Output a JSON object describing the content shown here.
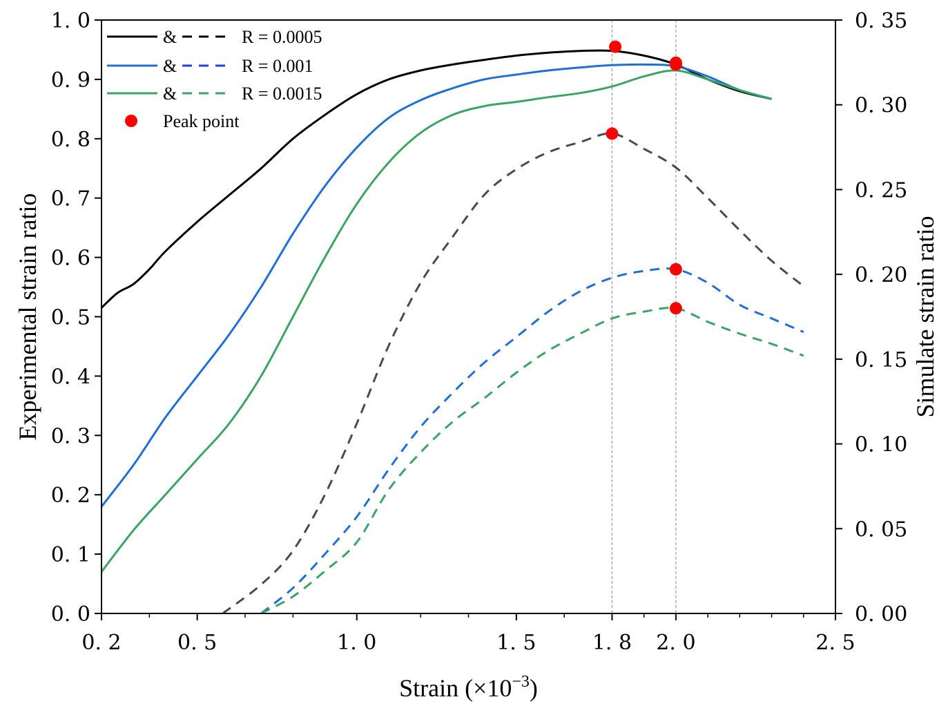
{
  "chart_data": {
    "type": "line",
    "title": "",
    "xlabel": "Strain (×10",
    "xlabel_exponent": "−3",
    "xlabel_close": ")",
    "ylabel_left": "Experimental strain ratio",
    "ylabel_right": "Simulate strain ratio",
    "xlim": [
      0.2,
      2.5
    ],
    "ylim_left": [
      0.0,
      1.0
    ],
    "ylim_right": [
      0.0,
      0.35
    ],
    "x_ticks": [
      0.2,
      0.5,
      1.0,
      1.5,
      1.8,
      2.0,
      2.5
    ],
    "x_tick_labels": [
      "0. 2",
      "0. 5",
      "1. 0",
      "1. 5",
      "1. 8",
      "2. 0",
      "2. 5"
    ],
    "x_minor_ticks": [
      0.35,
      0.65,
      0.8,
      1.2,
      1.35,
      1.65,
      1.9,
      2.1,
      2.2,
      2.3,
      2.4
    ],
    "y_left_ticks": [
      0.0,
      0.1,
      0.2,
      0.3,
      0.4,
      0.5,
      0.6,
      0.7,
      0.8,
      0.9,
      1.0
    ],
    "y_left_tick_labels": [
      "0. 0",
      "0. 1",
      "0. 2",
      "0. 3",
      "0. 4",
      "0. 5",
      "0. 6",
      "0. 7",
      "0. 8",
      "0. 9",
      "1. 0"
    ],
    "y_right_ticks": [
      0.0,
      0.05,
      0.1,
      0.15,
      0.2,
      0.25,
      0.3,
      0.35
    ],
    "y_right_tick_labels": [
      "0. 00",
      "0. 05",
      "0. 10",
      "0. 15",
      "0. 20",
      "0. 25",
      "0. 30",
      "0. 35"
    ],
    "vlines": [
      1.8,
      2.0
    ],
    "legend_position": "top-left",
    "legend": [
      {
        "amp": "&",
        "label": "R = 0.0005",
        "color": "#000000",
        "dash_color": "#000000"
      },
      {
        "amp": "&",
        "label": "R = 0.001",
        "color": "#1f6fd6",
        "dash_color": "#1f3fe0"
      },
      {
        "amp": "&",
        "label": "R = 0.0015",
        "color": "#3aa563",
        "dash_color": "#3aa563"
      },
      {
        "label": "Peak point",
        "color": "#ff0000",
        "marker": "dot"
      }
    ],
    "series": [
      {
        "name": "Experimental R = 0.0005",
        "axis": "left",
        "style": "solid",
        "color": "#000000",
        "x": [
          0.2,
          0.25,
          0.3,
          0.35,
          0.4,
          0.5,
          0.6,
          0.7,
          0.8,
          0.9,
          1.0,
          1.1,
          1.2,
          1.3,
          1.4,
          1.5,
          1.6,
          1.7,
          1.8,
          1.9,
          2.0,
          2.1,
          2.2,
          2.3
        ],
        "y": [
          0.515,
          0.54,
          0.555,
          0.58,
          0.61,
          0.66,
          0.705,
          0.75,
          0.8,
          0.84,
          0.875,
          0.9,
          0.915,
          0.925,
          0.933,
          0.94,
          0.945,
          0.948,
          0.948,
          0.94,
          0.925,
          0.9,
          0.88,
          0.867
        ]
      },
      {
        "name": "Experimental R = 0.001",
        "axis": "left",
        "style": "solid",
        "color": "#1f6fd6",
        "x": [
          0.2,
          0.3,
          0.4,
          0.5,
          0.6,
          0.7,
          0.8,
          0.9,
          1.0,
          1.1,
          1.2,
          1.3,
          1.4,
          1.5,
          1.6,
          1.7,
          1.8,
          1.9,
          2.0,
          2.1,
          2.2,
          2.3
        ],
        "y": [
          0.18,
          0.25,
          0.33,
          0.4,
          0.47,
          0.55,
          0.64,
          0.72,
          0.785,
          0.835,
          0.865,
          0.885,
          0.9,
          0.908,
          0.915,
          0.92,
          0.924,
          0.925,
          0.922,
          0.905,
          0.882,
          0.867
        ]
      },
      {
        "name": "Experimental R = 0.0015",
        "axis": "left",
        "style": "solid",
        "color": "#3aa563",
        "x": [
          0.2,
          0.3,
          0.4,
          0.5,
          0.6,
          0.7,
          0.8,
          0.9,
          1.0,
          1.1,
          1.2,
          1.3,
          1.4,
          1.5,
          1.6,
          1.7,
          1.8,
          1.9,
          2.0,
          2.1,
          2.2,
          2.3
        ],
        "y": [
          0.07,
          0.14,
          0.2,
          0.26,
          0.32,
          0.4,
          0.5,
          0.6,
          0.69,
          0.76,
          0.81,
          0.84,
          0.855,
          0.862,
          0.87,
          0.877,
          0.888,
          0.905,
          0.915,
          0.9,
          0.882,
          0.867
        ]
      },
      {
        "name": "Simulated R = 0.0005",
        "axis": "right",
        "style": "dashed",
        "color": "#4a4a4a",
        "x": [
          0.58,
          0.7,
          0.8,
          0.9,
          1.0,
          1.1,
          1.2,
          1.3,
          1.4,
          1.5,
          1.6,
          1.7,
          1.8,
          1.9,
          2.0,
          2.1,
          2.2,
          2.3,
          2.4
        ],
        "y": [
          0.0,
          0.017,
          0.037,
          0.07,
          0.112,
          0.158,
          0.195,
          0.222,
          0.247,
          0.262,
          0.272,
          0.278,
          0.283,
          0.274,
          0.263,
          0.245,
          0.226,
          0.208,
          0.193
        ]
      },
      {
        "name": "Simulated R = 0.001",
        "axis": "right",
        "style": "dashed",
        "color": "#1f6fd6",
        "x": [
          0.7,
          0.8,
          0.9,
          1.0,
          1.1,
          1.2,
          1.3,
          1.4,
          1.5,
          1.6,
          1.7,
          1.8,
          1.9,
          2.0,
          2.1,
          2.2,
          2.3,
          2.4
        ],
        "y": [
          0.0,
          0.015,
          0.035,
          0.057,
          0.085,
          0.11,
          0.13,
          0.148,
          0.163,
          0.178,
          0.19,
          0.198,
          0.202,
          0.203,
          0.195,
          0.182,
          0.174,
          0.166
        ]
      },
      {
        "name": "Simulated R = 0.0015",
        "axis": "right",
        "style": "dashed",
        "color": "#3aa563",
        "x": [
          0.7,
          0.8,
          0.9,
          1.0,
          1.1,
          1.2,
          1.3,
          1.4,
          1.5,
          1.6,
          1.7,
          1.8,
          1.9,
          2.0,
          2.1,
          2.2,
          2.3,
          2.4
        ],
        "y": [
          0.0,
          0.01,
          0.025,
          0.042,
          0.073,
          0.095,
          0.113,
          0.127,
          0.142,
          0.155,
          0.165,
          0.174,
          0.178,
          0.18,
          0.172,
          0.165,
          0.159,
          0.152
        ]
      }
    ],
    "peak_points": [
      {
        "x": 1.81,
        "y": 0.955,
        "axis": "left"
      },
      {
        "x": 2.0,
        "y": 0.928,
        "axis": "left"
      },
      {
        "x": 2.0,
        "y": 0.925,
        "axis": "left"
      },
      {
        "x": 1.8,
        "y": 0.283,
        "axis": "right"
      },
      {
        "x": 2.0,
        "y": 0.203,
        "axis": "right"
      },
      {
        "x": 2.0,
        "y": 0.18,
        "axis": "right"
      }
    ]
  }
}
